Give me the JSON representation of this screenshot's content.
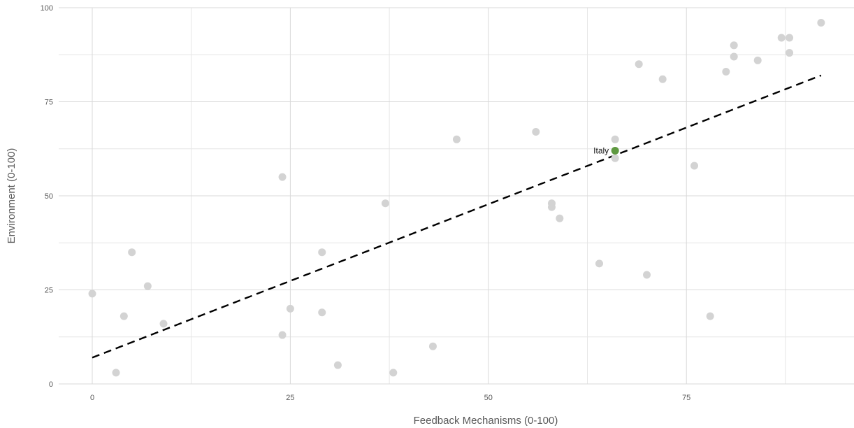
{
  "chart_data": {
    "type": "scatter",
    "title": "",
    "xlabel": "Feedback Mechanisms (0-100)",
    "ylabel": "Environment (0-100)",
    "xlim": [
      -4,
      96
    ],
    "ylim": [
      0,
      100
    ],
    "x_ticks": [
      0,
      25,
      50,
      75
    ],
    "y_ticks": [
      0,
      25,
      50,
      75,
      100
    ],
    "grid": true,
    "point_color": "#d3d3d3",
    "highlight_color": "#5f9941",
    "trendline": {
      "style": "dashed",
      "color": "#000000",
      "from": [
        0,
        7
      ],
      "to": [
        92,
        82
      ]
    },
    "points": [
      {
        "x": 0,
        "y": 24
      },
      {
        "x": 3,
        "y": 3
      },
      {
        "x": 4,
        "y": 18
      },
      {
        "x": 5,
        "y": 35
      },
      {
        "x": 7,
        "y": 26
      },
      {
        "x": 9,
        "y": 16
      },
      {
        "x": 24,
        "y": 55
      },
      {
        "x": 24,
        "y": 13
      },
      {
        "x": 25,
        "y": 20
      },
      {
        "x": 29,
        "y": 35
      },
      {
        "x": 29,
        "y": 19
      },
      {
        "x": 31,
        "y": 5
      },
      {
        "x": 37,
        "y": 48
      },
      {
        "x": 38,
        "y": 3
      },
      {
        "x": 43,
        "y": 10
      },
      {
        "x": 46,
        "y": 65
      },
      {
        "x": 56,
        "y": 67
      },
      {
        "x": 58,
        "y": 48
      },
      {
        "x": 58,
        "y": 47
      },
      {
        "x": 59,
        "y": 44
      },
      {
        "x": 64,
        "y": 32
      },
      {
        "x": 66,
        "y": 65
      },
      {
        "x": 66,
        "y": 60
      },
      {
        "x": 69,
        "y": 85
      },
      {
        "x": 70,
        "y": 29
      },
      {
        "x": 72,
        "y": 81
      },
      {
        "x": 76,
        "y": 58
      },
      {
        "x": 78,
        "y": 18
      },
      {
        "x": 80,
        "y": 83
      },
      {
        "x": 81,
        "y": 90
      },
      {
        "x": 81,
        "y": 87
      },
      {
        "x": 84,
        "y": 86
      },
      {
        "x": 87,
        "y": 92
      },
      {
        "x": 88,
        "y": 92
      },
      {
        "x": 88,
        "y": 88
      },
      {
        "x": 92,
        "y": 96
      },
      {
        "x": 66,
        "y": 62,
        "label": "Italy",
        "highlight": true
      }
    ]
  }
}
